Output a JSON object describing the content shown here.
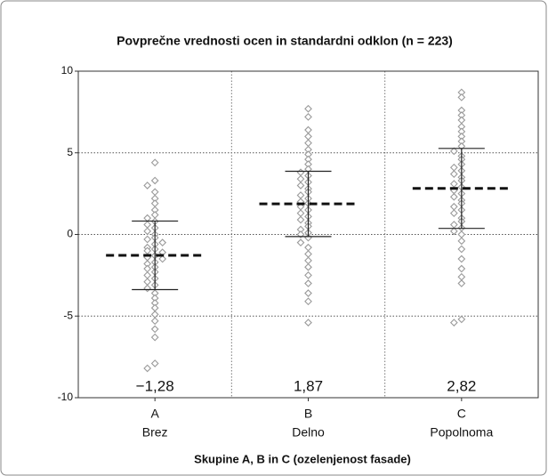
{
  "chart_data": {
    "type": "swarm",
    "title": "Povprečne vrednosti ocen in standardni odklon (n = 223)",
    "x_label": "Skupine A, B in C (ozelenjenost fasade)",
    "categories": [
      "A",
      "B",
      "C"
    ],
    "category_labels": [
      "Brez",
      "Delno",
      "Popolnoma"
    ],
    "means": [
      -1.28,
      1.87,
      2.82
    ],
    "mean_labels": [
      "−1,28",
      "1,87",
      "2,82"
    ],
    "sd": [
      2.1,
      2.0,
      2.45
    ],
    "points": [
      [
        4.4,
        3.3,
        3.0,
        2.6,
        2.2,
        1.9,
        1.5,
        1.2,
        1.0,
        0.8,
        0.6,
        0.4,
        0.2,
        0.0,
        -0.2,
        -0.3,
        -0.5,
        -0.6,
        -0.8,
        -0.9,
        -1.0,
        -1.1,
        -1.3,
        -1.4,
        -1.5,
        -1.7,
        -1.8,
        -2.0,
        -2.1,
        -2.3,
        -2.5,
        -2.7,
        -2.9,
        -3.1,
        -3.3,
        -3.6,
        -3.9,
        -4.2,
        -4.5,
        -4.9,
        -5.3,
        -5.8,
        -6.3,
        -7.9,
        -8.2
      ],
      [
        7.7,
        7.2,
        6.4,
        6.0,
        5.6,
        5.2,
        4.9,
        4.6,
        4.3,
        4.0,
        3.8,
        3.6,
        3.4,
        3.2,
        3.0,
        2.8,
        2.6,
        2.4,
        2.2,
        2.0,
        1.9,
        1.7,
        1.5,
        1.3,
        1.1,
        0.9,
        0.7,
        0.5,
        0.3,
        0.1,
        0.0,
        -0.2,
        -0.5,
        -0.8,
        -1.2,
        -1.6,
        -2.0,
        -2.5,
        -3.0,
        -3.6,
        -4.1,
        -5.4
      ],
      [
        8.7,
        8.4,
        7.6,
        7.3,
        7.0,
        6.6,
        6.3,
        6.0,
        5.7,
        5.4,
        5.1,
        4.8,
        4.6,
        4.3,
        4.1,
        3.9,
        3.7,
        3.5,
        3.3,
        3.1,
        2.9,
        2.7,
        2.5,
        2.3,
        2.1,
        1.9,
        1.7,
        1.5,
        1.3,
        1.0,
        0.8,
        0.6,
        0.4,
        0.2,
        0.0,
        -0.4,
        -0.9,
        -1.5,
        -2.1,
        -2.6,
        -3.0,
        -5.2,
        -5.4
      ]
    ],
    "point_color": "#9a9a9a",
    "ylim": [
      -10,
      10
    ],
    "yticks": [
      -10,
      -5,
      0,
      5,
      10
    ],
    "grid": true
  }
}
